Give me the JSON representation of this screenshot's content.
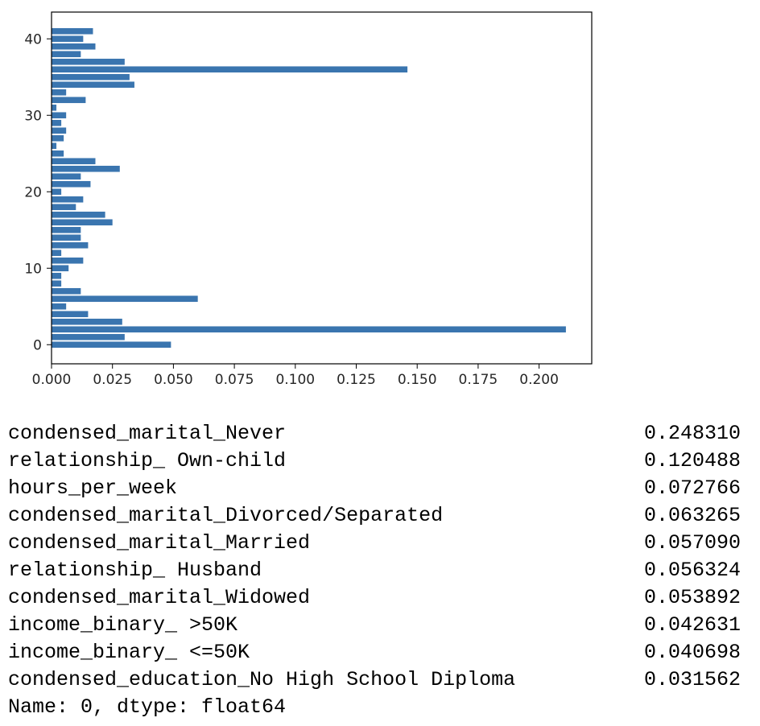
{
  "chart_data": {
    "type": "bar",
    "orientation": "horizontal",
    "title": "",
    "xlabel": "",
    "ylabel": "",
    "categories": [
      0,
      1,
      2,
      3,
      4,
      5,
      6,
      7,
      8,
      9,
      10,
      11,
      12,
      13,
      14,
      15,
      16,
      17,
      18,
      19,
      20,
      21,
      22,
      23,
      24,
      25,
      26,
      27,
      28,
      29,
      30,
      31,
      32,
      33,
      34,
      35,
      36,
      37,
      38,
      39,
      40,
      41
    ],
    "values": [
      0.049,
      0.03,
      0.211,
      0.029,
      0.015,
      0.006,
      0.06,
      0.012,
      0.004,
      0.004,
      0.007,
      0.013,
      0.004,
      0.015,
      0.012,
      0.012,
      0.025,
      0.022,
      0.01,
      0.013,
      0.004,
      0.016,
      0.012,
      0.028,
      0.018,
      0.005,
      0.002,
      0.005,
      0.006,
      0.004,
      0.006,
      0.002,
      0.014,
      0.006,
      0.034,
      0.032,
      0.146,
      0.03,
      0.012,
      0.018,
      0.013,
      0.017
    ],
    "xlim": [
      0,
      0.2216
    ],
    "ylim": [
      -2.5,
      43.5
    ],
    "xticks": [
      "0.000",
      "0.025",
      "0.050",
      "0.075",
      "0.100",
      "0.125",
      "0.150",
      "0.175",
      "0.200"
    ],
    "yticks": [
      "0",
      "10",
      "20",
      "30",
      "40"
    ],
    "bar_color": "#3a75af",
    "grid": false
  },
  "series_output": {
    "rows": [
      {
        "name": "condensed_marital_Never",
        "value": "0.248310"
      },
      {
        "name": "relationship_ Own-child",
        "value": "0.120488"
      },
      {
        "name": "hours_per_week",
        "value": "0.072766"
      },
      {
        "name": "condensed_marital_Divorced/Separated",
        "value": "0.063265"
      },
      {
        "name": "condensed_marital_Married",
        "value": "0.057090"
      },
      {
        "name": "relationship_ Husband",
        "value": "0.056324"
      },
      {
        "name": "condensed_marital_Widowed",
        "value": "0.053892"
      },
      {
        "name": "income_binary_ >50K",
        "value": "0.042631"
      },
      {
        "name": "income_binary_ <=50K",
        "value": "0.040698"
      },
      {
        "name": "condensed_education_No High School Diploma",
        "value": "0.031562"
      }
    ],
    "footer": "Name: 0, dtype: float64"
  }
}
